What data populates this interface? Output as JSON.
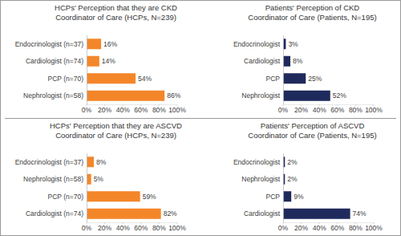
{
  "chart_data": [
    {
      "type": "bar",
      "orientation": "horizontal",
      "title": "HCPs' Perception that they are CKD\nCoordinator of Care (HCPs, N=239)",
      "categories": [
        "Endocrinologist (n=37)",
        "Cardiologist (n=74)",
        "PCP (n=70)",
        "Nephrologist (n=58)"
      ],
      "values": [
        16,
        14,
        54,
        86
      ],
      "value_labels": [
        "16%",
        "14%",
        "54%",
        "86%"
      ],
      "color": "#f4862a",
      "data_labels": true,
      "xlim": [
        0,
        100
      ],
      "xticks": [
        {
          "value": 0,
          "label": "0%"
        },
        {
          "value": 20,
          "label": "20%"
        },
        {
          "value": 40,
          "label": "40%"
        },
        {
          "value": 60,
          "label": "60%"
        },
        {
          "value": 80,
          "label": "80%"
        },
        {
          "value": 100,
          "label": "100%"
        }
      ]
    },
    {
      "type": "bar",
      "orientation": "horizontal",
      "title": "Patients' Perception of CKD\nCoordinator of Care (Patients, N=195)",
      "categories": [
        "Endocrinologist",
        "Cardiologist",
        "PCP",
        "Nephrologist"
      ],
      "values": [
        3,
        8,
        25,
        52
      ],
      "value_labels": [
        "3%",
        "8%",
        "25%",
        "52%"
      ],
      "color": "#1f2a5c",
      "data_labels": true,
      "xlim": [
        0,
        100
      ],
      "xticks": [
        {
          "value": 0,
          "label": "0%"
        },
        {
          "value": 20,
          "label": "20%"
        },
        {
          "value": 40,
          "label": "40%"
        },
        {
          "value": 60,
          "label": "60%"
        },
        {
          "value": 80,
          "label": "80%"
        },
        {
          "value": 100,
          "label": "100%"
        }
      ]
    },
    {
      "type": "bar",
      "orientation": "horizontal",
      "title": "HCPs' Perception that they are ASCVD\nCoordinator of Care (HCPs, N=239)",
      "categories": [
        "Endocrinologist (n=37)",
        "Nephrologist (n=58)",
        "PCP (n=70)",
        "Cardiologist (n=74)"
      ],
      "values": [
        8,
        5,
        59,
        82
      ],
      "value_labels": [
        "8%",
        "5%",
        "59%",
        "82%"
      ],
      "color": "#f4862a",
      "data_labels": true,
      "xlim": [
        0,
        100
      ],
      "xticks": [
        {
          "value": 0,
          "label": "0%"
        },
        {
          "value": 20,
          "label": "20%"
        },
        {
          "value": 40,
          "label": "40%"
        },
        {
          "value": 60,
          "label": "60%"
        },
        {
          "value": 80,
          "label": "80%"
        },
        {
          "value": 100,
          "label": "100%"
        }
      ]
    },
    {
      "type": "bar",
      "orientation": "horizontal",
      "title": "Patients' Perception of ASCVD\nCoordinator of Care (Patients, N=195)",
      "categories": [
        "Endocrinologist",
        "Nephrologist",
        "PCP",
        "Cardiologist"
      ],
      "values": [
        2,
        2,
        9,
        74
      ],
      "value_labels": [
        "2%",
        "2%",
        "9%",
        "74%"
      ],
      "color": "#1f2a5c",
      "data_labels": true,
      "xlim": [
        0,
        100
      ],
      "xticks": [
        {
          "value": 0,
          "label": "0%"
        },
        {
          "value": 20,
          "label": "20%"
        },
        {
          "value": 40,
          "label": "40%"
        },
        {
          "value": 60,
          "label": "60%"
        },
        {
          "value": 80,
          "label": "80%"
        },
        {
          "value": 100,
          "label": "100%"
        }
      ]
    }
  ]
}
